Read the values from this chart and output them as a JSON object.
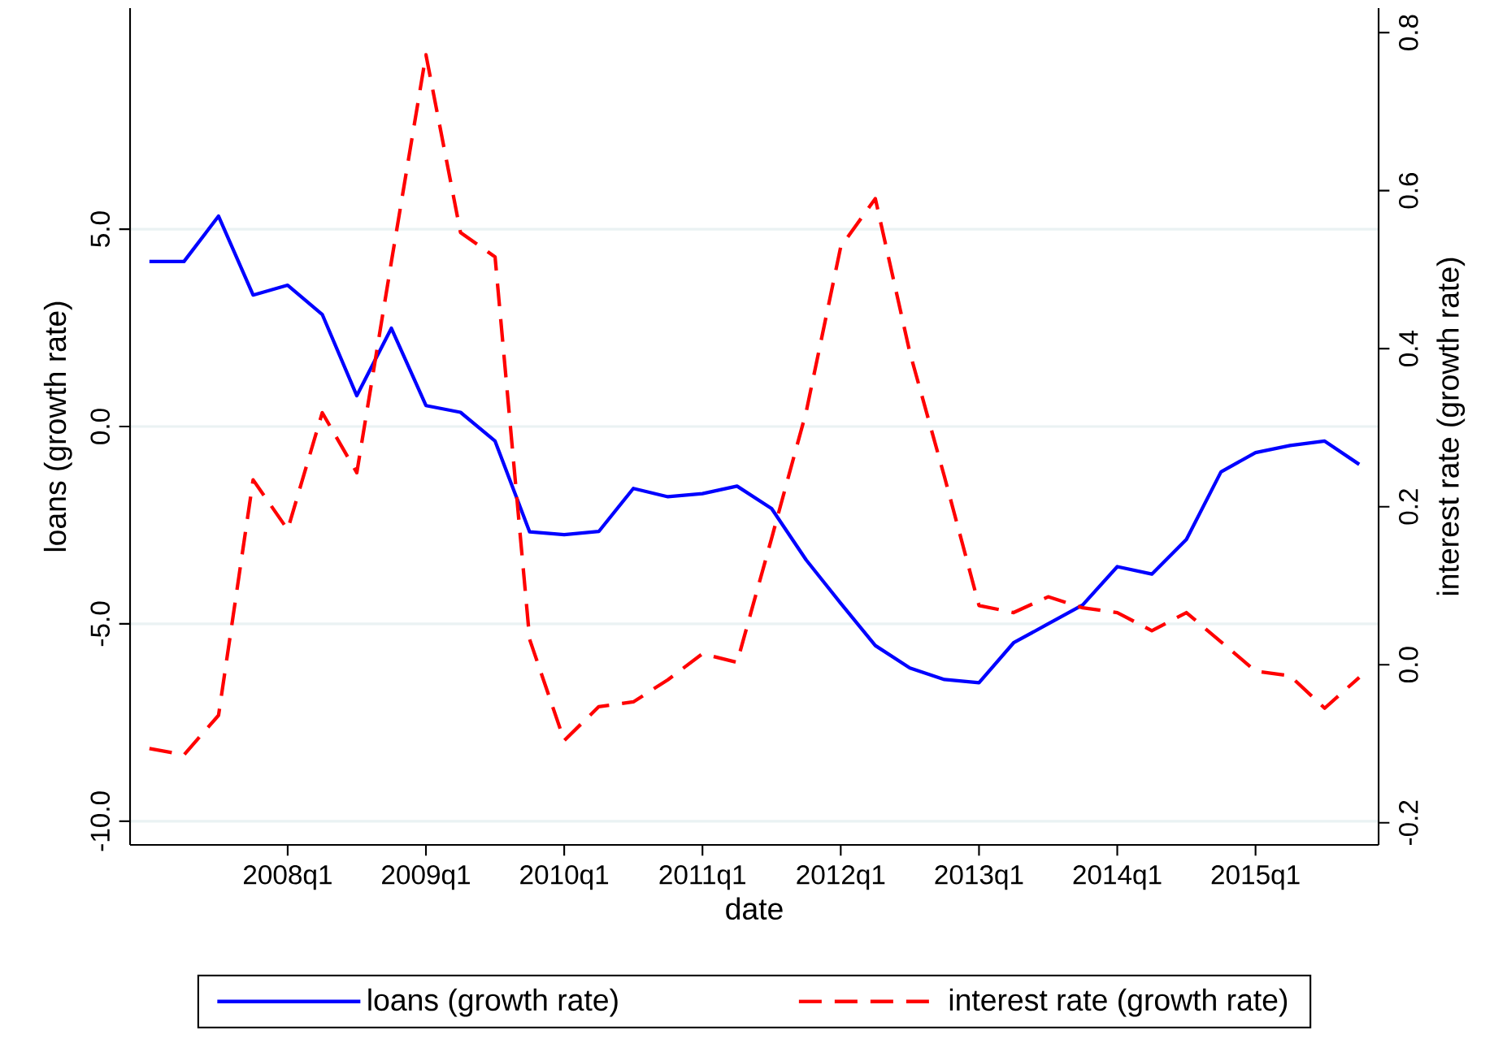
{
  "chart_data": {
    "type": "line",
    "xlabel": "date",
    "ylabel": "loans (growth rate)",
    "y2label": "interest rate (growth rate)",
    "categories": [
      null,
      null,
      null,
      null,
      "2008q1",
      null,
      null,
      null,
      "2009q1",
      null,
      null,
      null,
      "2010q1",
      null,
      null,
      null,
      "2011q1",
      null,
      null,
      null,
      "2012q1",
      null,
      null,
      null,
      "2013q1",
      null,
      null,
      null,
      "2014q1",
      null,
      null,
      null,
      "2015q1",
      null,
      null,
      null
    ],
    "ylim": [
      -10.6,
      10.6
    ],
    "yticks": [
      {
        "value": -10,
        "label": "-10.0"
      },
      {
        "value": -5,
        "label": "-5.0"
      },
      {
        "value": 0,
        "label": "0.0"
      },
      {
        "value": 5,
        "label": "5.0"
      }
    ],
    "y2lim": [
      -0.228,
      0.831
    ],
    "y2ticks": [
      {
        "value": -0.2,
        "label": "-0.2"
      },
      {
        "value": 0,
        "label": "0.0"
      },
      {
        "value": 0.2,
        "label": "0.2"
      },
      {
        "value": 0.4,
        "label": "0.4"
      },
      {
        "value": 0.6,
        "label": "0.6"
      },
      {
        "value": 0.8,
        "label": "0.8"
      }
    ],
    "series": [
      {
        "name": "loans (growth rate)",
        "color": "#0000ff",
        "line_style": "solid",
        "values": [
          4.18,
          4.18,
          5.33,
          3.33,
          3.58,
          2.84,
          0.78,
          2.49,
          0.53,
          0.36,
          -0.37,
          -2.67,
          -2.74,
          -2.66,
          -1.57,
          -1.78,
          -1.7,
          -1.51,
          -2.08,
          -3.38,
          -4.48,
          -5.55,
          -6.12,
          -6.41,
          -6.49,
          -5.48,
          -5.0,
          -4.52,
          -3.55,
          -3.74,
          -2.86,
          -1.15,
          -0.66,
          -0.48,
          -0.37,
          -0.96
        ]
      },
      {
        "name": "interest rate (growth rate)",
        "color": "#ff0000",
        "line_style": "dashed",
        "axis": "y2",
        "values": [
          -0.106,
          -0.114,
          -0.064,
          0.234,
          0.171,
          0.319,
          0.243,
          0.51,
          0.772,
          0.547,
          0.516,
          0.032,
          -0.096,
          -0.053,
          -0.047,
          -0.019,
          0.014,
          0.003,
          0.16,
          0.32,
          0.529,
          0.59,
          0.395,
          0.238,
          0.075,
          0.066,
          0.086,
          0.072,
          0.066,
          0.043,
          0.066,
          0.029,
          -0.008,
          -0.014,
          -0.055,
          -0.016
        ]
      }
    ],
    "grid": "y",
    "legend": "bottom"
  }
}
